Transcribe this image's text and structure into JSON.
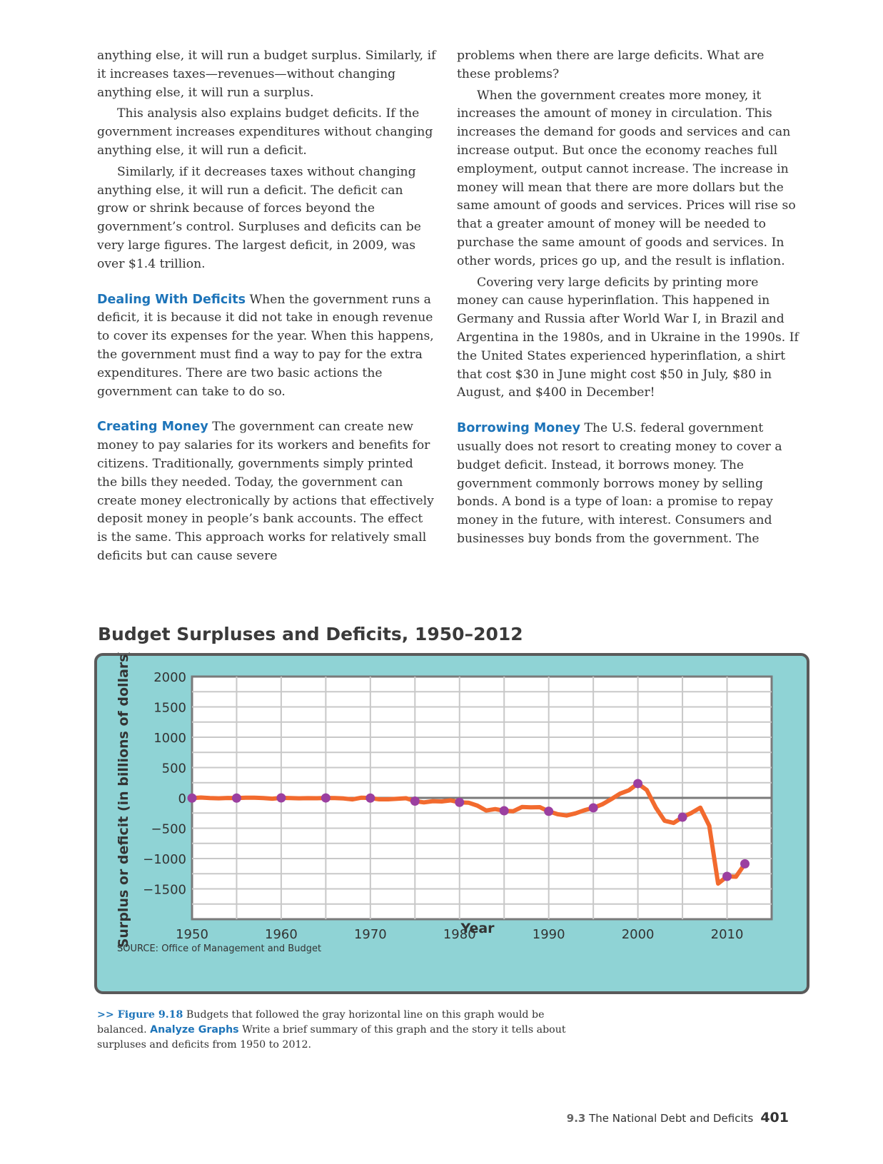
{
  "left_column": {
    "p1": "anything else, it will run a budget surplus. Similarly, if it increases taxes—revenues—without changing anything else, it will run a surplus.",
    "p2": "This analysis also explains budget deficits. If the government increases expenditures without changing anything else, it will run a deficit.",
    "p3": "Similarly, if it decreases taxes without changing anything else, it will run a deficit. The deficit can grow or shrink because of forces beyond the government’s control. Surpluses and deficits can be very large figures. The largest deficit, in 2009, was over $1.4 trillion.",
    "h4": "Dealing With Deficits",
    "p4": " When the government runs a deficit, it is because it did not take in enough revenue to cover its expenses for the year. When this happens, the government must find a way to pay for the extra expenditures. There are two basic actions the government can take to do so.",
    "h5": "Creating Money",
    "p5": " The government can create new money to pay salaries for its workers and benefits for citizens. Traditionally, governments simply printed the bills they needed. Today, the government can create money electronically by actions that effectively deposit money in people’s bank accounts. The effect is the same. This approach works for relatively small deficits but can cause severe"
  },
  "right_column": {
    "p1": "problems when there are large deficits. What are these problems?",
    "p2": "When the government creates more money, it increases the amount of money in circulation. This increases the demand for goods and services and can increase output. But once the economy reaches full employment, output cannot increase. The increase in money will mean that there are more dollars but the same amount of goods and services. Prices will rise so that a greater amount of money will be needed to purchase the same amount of goods and services. In other words, prices go up, and the result is inflation.",
    "p3": "Covering very large deficits by printing more money can cause hyperinflation. This happened in Germany and Russia after World War I, in Brazil and Argentina in the 1980s, and in Ukraine in the 1990s. If the United States experienced hyperinflation, a shirt that cost $30 in June might cost $50 in July, $80 in August, and $400 in December!",
    "h4": "Borrowing Money",
    "p4": " The U.S. federal government usually does not resort to creating money to cover a budget deficit. Instead, it borrows money. The government commonly borrows money by selling bonds. A bond is a type of loan: a promise to repay money in the future, with interest. Consumers and businesses buy bonds from the government. The"
  },
  "colors": {
    "panel": "#8fd3d5",
    "panel_border": "#5a5a5a",
    "line": "#f26a2e",
    "marker": "#9b3fa0",
    "heading_blue": "#1d74b9",
    "zero_line": "#7a7a7a"
  },
  "chart_data": {
    "type": "line",
    "title": "Budget Surpluses and Deficits, 1950–2012",
    "xlabel": "Year",
    "ylabel": "Surplus or deficit (in billions of dollars)",
    "source": "SOURCE: Office of Management and Budget",
    "xlim": [
      1950,
      2015
    ],
    "ylim": [
      -2000,
      2000
    ],
    "x_ticks": [
      1950,
      1960,
      1970,
      1980,
      1990,
      2000,
      2010
    ],
    "y_ticks": [
      2000,
      1500,
      1000,
      500,
      0,
      -500,
      -1000,
      -1500
    ],
    "y_tick_labels": [
      "2000",
      "1500",
      "1000",
      "500",
      "0",
      "−500",
      "−1000",
      "−1500"
    ],
    "grid": true,
    "balanced_line": 0,
    "series": [
      {
        "x": [
          1950,
          1951,
          1952,
          1953,
          1954,
          1955,
          1956,
          1957,
          1958,
          1959,
          1960,
          1961,
          1962,
          1963,
          1964,
          1965,
          1966,
          1967,
          1968,
          1969,
          1970,
          1971,
          1972,
          1973,
          1974,
          1975,
          1976,
          1977,
          1978,
          1979,
          1980,
          1981,
          1982,
          1983,
          1984,
          1985,
          1986,
          1987,
          1988,
          1989,
          1990,
          1991,
          1992,
          1993,
          1994,
          1995,
          1996,
          1997,
          1998,
          1999,
          2000,
          2001,
          2002,
          2003,
          2004,
          2005,
          2006,
          2007,
          2008,
          2009,
          2010,
          2011,
          2012
        ],
        "y": [
          -3,
          6,
          -2,
          -7,
          -1,
          -3,
          4,
          3,
          -3,
          -13,
          0,
          -3,
          -7,
          -5,
          -6,
          -1,
          -4,
          -9,
          -25,
          3,
          -3,
          -23,
          -23,
          -15,
          -6,
          -53,
          -74,
          -54,
          -59,
          -41,
          -74,
          -79,
          -128,
          -208,
          -185,
          -212,
          -221,
          -150,
          -155,
          -153,
          -221,
          -269,
          -290,
          -255,
          -203,
          -164,
          -107,
          -22,
          69,
          126,
          236,
          128,
          -158,
          -378,
          -413,
          -318,
          -248,
          -161,
          -459,
          -1413,
          -1294,
          -1300,
          -1087
        ]
      }
    ],
    "markers": {
      "x": [
        1950,
        1955,
        1960,
        1965,
        1970,
        1975,
        1980,
        1985,
        1990,
        1995,
        2000,
        2005,
        2010,
        2012
      ],
      "y": [
        -3,
        -3,
        0,
        -1,
        -3,
        -53,
        -74,
        -212,
        -221,
        -164,
        236,
        -318,
        -1294,
        -1087
      ]
    }
  },
  "caption": {
    "fig_label": ">> Figure 9.18",
    "text1": " Budgets that followed the gray horizontal line on this graph would be balanced. ",
    "analyze": "Analyze Graphs",
    "text2": " Write a brief summary of this graph and the story it tells about surpluses and deficits from 1950 to 2012."
  },
  "footer": {
    "section": "9.3",
    "title": " The National Debt and Deficits",
    "page": "401"
  }
}
